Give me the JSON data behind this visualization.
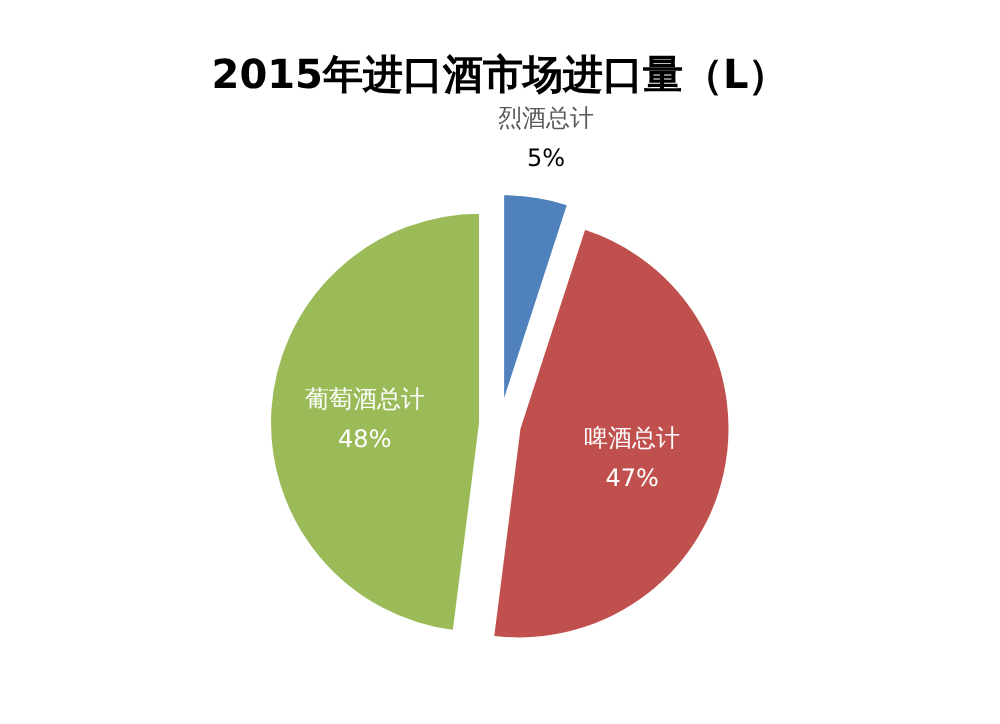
{
  "chart_data": {
    "type": "pie",
    "title": "2015年进口酒市场进口量（L）",
    "categories": [
      "烈酒总计",
      "啤酒总计",
      "葡萄酒总计"
    ],
    "values": [
      5,
      47,
      48
    ],
    "colors": [
      "#4f81bd",
      "#c0504d",
      "#9bbb59"
    ],
    "value_labels": [
      "5%",
      "47%",
      "48%"
    ]
  }
}
